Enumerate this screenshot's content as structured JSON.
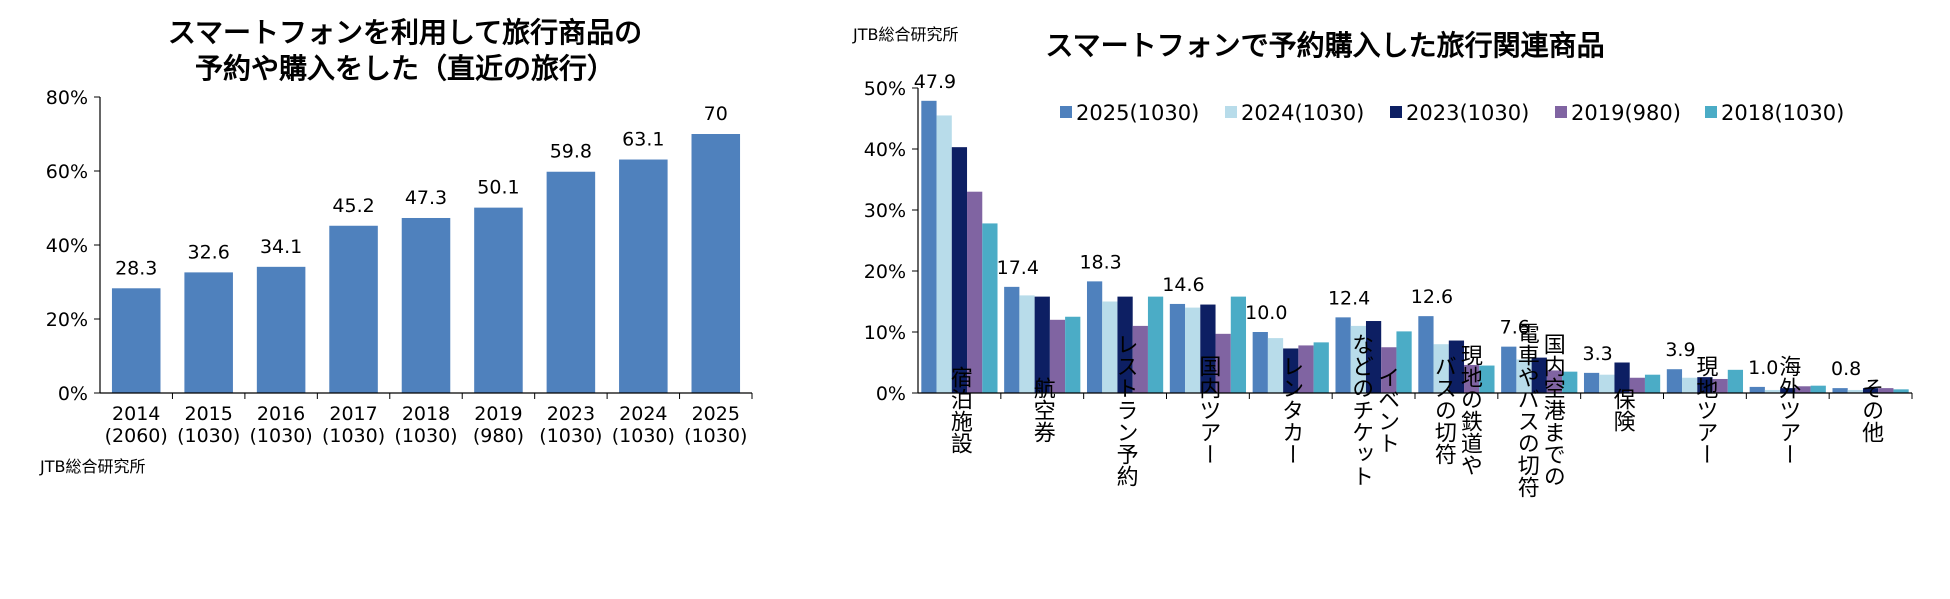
{
  "chart_data": [
    {
      "type": "bar",
      "title": [
        "スマートフォンを利用して旅行商品の",
        "予約や購入をした（直近の旅行）"
      ],
      "source": "JTB総合研究所",
      "categories": [
        [
          "2014",
          "(2060)"
        ],
        [
          "2015",
          "(1030)"
        ],
        [
          "2016",
          "(1030)"
        ],
        [
          "2017",
          "(1030)"
        ],
        [
          "2018",
          "(1030)"
        ],
        [
          "2019",
          "(980)"
        ],
        [
          "2023",
          "(1030)"
        ],
        [
          "2024",
          "(1030)"
        ],
        [
          "2025",
          "(1030)"
        ]
      ],
      "values": [
        28.3,
        32.6,
        34.1,
        45.2,
        47.3,
        50.1,
        59.8,
        63.1,
        70
      ],
      "value_labels": [
        "28.3",
        "32.6",
        "34.1",
        "45.2",
        "47.3",
        "50.1",
        "59.8",
        "63.1",
        "70"
      ],
      "ylim": [
        0,
        80
      ],
      "yticks": [
        0,
        20,
        40,
        60,
        80
      ],
      "ytick_labels": [
        "0%",
        "20%",
        "40%",
        "60%",
        "80%"
      ],
      "color": "#4f81bd",
      "xlabel": "",
      "ylabel": ""
    },
    {
      "type": "bar",
      "title": "スマートフォンで予約購入した旅行関連商品",
      "source": "JTB総合研究所",
      "categories": [
        [
          "宿泊施設"
        ],
        [
          "航空券"
        ],
        [
          "レストラン予約"
        ],
        [
          "国内ツアー"
        ],
        [
          "レンタカー"
        ],
        [
          "イベント",
          "などのチケット"
        ],
        [
          "現地の鉄道や",
          "バスの切符"
        ],
        [
          "国内空港までの",
          "電車やバスの切符"
        ],
        [
          "保険"
        ],
        [
          "現地ツアー"
        ],
        [
          "海外ツアー"
        ],
        [
          "その他"
        ]
      ],
      "series": [
        {
          "name": "2025(1030)",
          "color": "#4f81bd",
          "values": [
            47.9,
            17.4,
            18.3,
            14.6,
            10.0,
            12.4,
            12.6,
            7.6,
            3.3,
            3.9,
            1.0,
            0.8
          ]
        },
        {
          "name": "2024(1030)",
          "color": "#b8dcea",
          "values": [
            45.5,
            16.0,
            15.0,
            14.0,
            9.0,
            11.0,
            8.0,
            5.5,
            3.0,
            2.5,
            0.5,
            0.5
          ]
        },
        {
          "name": "2023(1030)",
          "color": "#0d1f63",
          "values": [
            40.3,
            15.8,
            15.8,
            14.5,
            7.3,
            11.8,
            8.6,
            5.8,
            5.0,
            2.6,
            0.8,
            0.8
          ]
        },
        {
          "name": "2019(980)",
          "color": "#8064a2",
          "values": [
            33.0,
            12.0,
            11.0,
            9.7,
            7.8,
            7.5,
            4.6,
            3.7,
            2.5,
            2.3,
            1.1,
            0.8
          ]
        },
        {
          "name": "2018(1030)",
          "color": "#4bacc6",
          "values": [
            27.8,
            12.5,
            15.8,
            15.8,
            8.3,
            10.1,
            4.5,
            3.5,
            3.0,
            3.8,
            1.2,
            0.6
          ]
        }
      ],
      "value_labels": [
        "47.9",
        "17.4",
        "18.3",
        "14.6",
        "10.0",
        "12.4",
        "12.6",
        "7.6",
        "3.3",
        "3.9",
        "1.0",
        "0.8"
      ],
      "ylim": [
        0,
        50
      ],
      "yticks": [
        0,
        10,
        20,
        30,
        40,
        50
      ],
      "ytick_labels": [
        "0%",
        "10%",
        "20%",
        "30%",
        "40%",
        "50%"
      ],
      "legend_position": "top",
      "xlabel": "",
      "ylabel": ""
    }
  ]
}
